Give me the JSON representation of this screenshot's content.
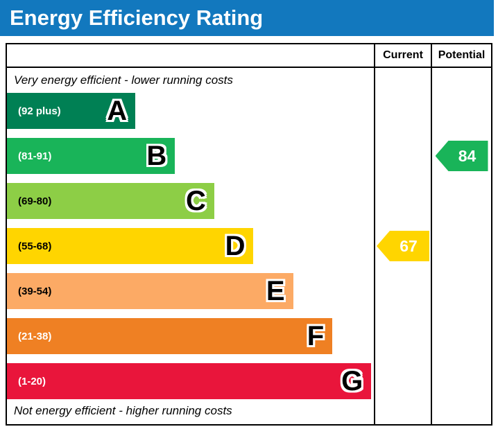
{
  "header": {
    "title": "Energy Efficiency Rating",
    "bg_color": "#1278be"
  },
  "columns": {
    "current": "Current",
    "potential": "Potential"
  },
  "captions": {
    "top": "Very energy efficient - lower running costs",
    "bottom": "Not energy efficient - higher running costs"
  },
  "chart_data": {
    "type": "bar",
    "title": "Energy Efficiency Rating",
    "bands": [
      {
        "letter": "A",
        "range": "(92 plus)",
        "color": "#008054",
        "width_pct": 35.0,
        "label_color": "#ffffff"
      },
      {
        "letter": "B",
        "range": "(81-91)",
        "color": "#19b459",
        "width_pct": 45.8,
        "label_color": "#ffffff"
      },
      {
        "letter": "C",
        "range": "(69-80)",
        "color": "#8dce46",
        "width_pct": 56.5,
        "label_color": "#000000"
      },
      {
        "letter": "D",
        "range": "(55-68)",
        "color": "#ffd500",
        "width_pct": 67.2,
        "label_color": "#000000"
      },
      {
        "letter": "E",
        "range": "(39-54)",
        "color": "#fcaa65",
        "width_pct": 78.0,
        "label_color": "#000000"
      },
      {
        "letter": "F",
        "range": "(21-38)",
        "color": "#ef8023",
        "width_pct": 88.7,
        "label_color": "#ffffff"
      },
      {
        "letter": "G",
        "range": "(1-20)",
        "color": "#e9153b",
        "width_pct": 99.3,
        "label_color": "#ffffff"
      }
    ],
    "current": {
      "value": 67,
      "band": "D",
      "band_index": 3,
      "color": "#ffd500"
    },
    "potential": {
      "value": 84,
      "band": "B",
      "band_index": 1,
      "color": "#19b459"
    }
  }
}
